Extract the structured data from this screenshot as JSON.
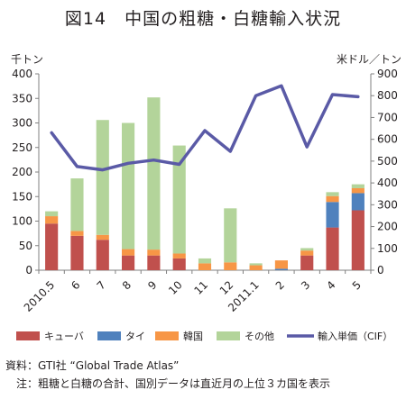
{
  "page_title": "図14　中国の粗糖・白糖輸入状況",
  "source": "資料：GTI社 “Global Trade Atlas”",
  "note": "　注：粗糖と白糖の合計、国別データは直近月の上位３カ国を表示",
  "chart_data": {
    "type": "bar",
    "stacked": true,
    "title": "",
    "y_left_unit": "千トン",
    "y_right_unit": "米ドル／トン",
    "categories": [
      "2010.5",
      "6",
      "7",
      "8",
      "9",
      "10",
      "11",
      "12",
      "2011.1",
      "2",
      "3",
      "4",
      "5"
    ],
    "ylim": [
      0,
      400
    ],
    "y2lim": [
      0,
      900
    ],
    "yticks": [
      0,
      50,
      100,
      150,
      200,
      250,
      300,
      350,
      400
    ],
    "y2ticks": [
      0,
      100,
      200,
      300,
      400,
      500,
      600,
      700,
      800,
      900
    ],
    "grid": false,
    "legend_position": "bottom",
    "series": [
      {
        "name": "キューバ",
        "type": "bar",
        "color": "#c0504d",
        "values": [
          95,
          70,
          62,
          30,
          30,
          24,
          0,
          0,
          0,
          0,
          30,
          87,
          122
        ]
      },
      {
        "name": "タイ",
        "type": "bar",
        "color": "#4f81bd",
        "values": [
          0,
          0,
          0,
          0,
          0,
          0,
          0,
          0,
          0,
          3,
          0,
          52,
          35
        ]
      },
      {
        "name": "韓国",
        "type": "bar",
        "color": "#f79646",
        "values": [
          15,
          10,
          10,
          13,
          12,
          10,
          14,
          16,
          10,
          17,
          10,
          12,
          10
        ]
      },
      {
        "name": "その他",
        "type": "bar",
        "color": "#b3d49a",
        "values": [
          10,
          107,
          234,
          257,
          310,
          220,
          10,
          110,
          4,
          0,
          5,
          8,
          8
        ]
      },
      {
        "name": "輸入単価（CIF）",
        "type": "line",
        "axis": "right",
        "color": "#5a5aa6",
        "values": [
          630,
          475,
          460,
          490,
          505,
          485,
          640,
          545,
          800,
          845,
          565,
          805,
          795
        ]
      }
    ]
  }
}
